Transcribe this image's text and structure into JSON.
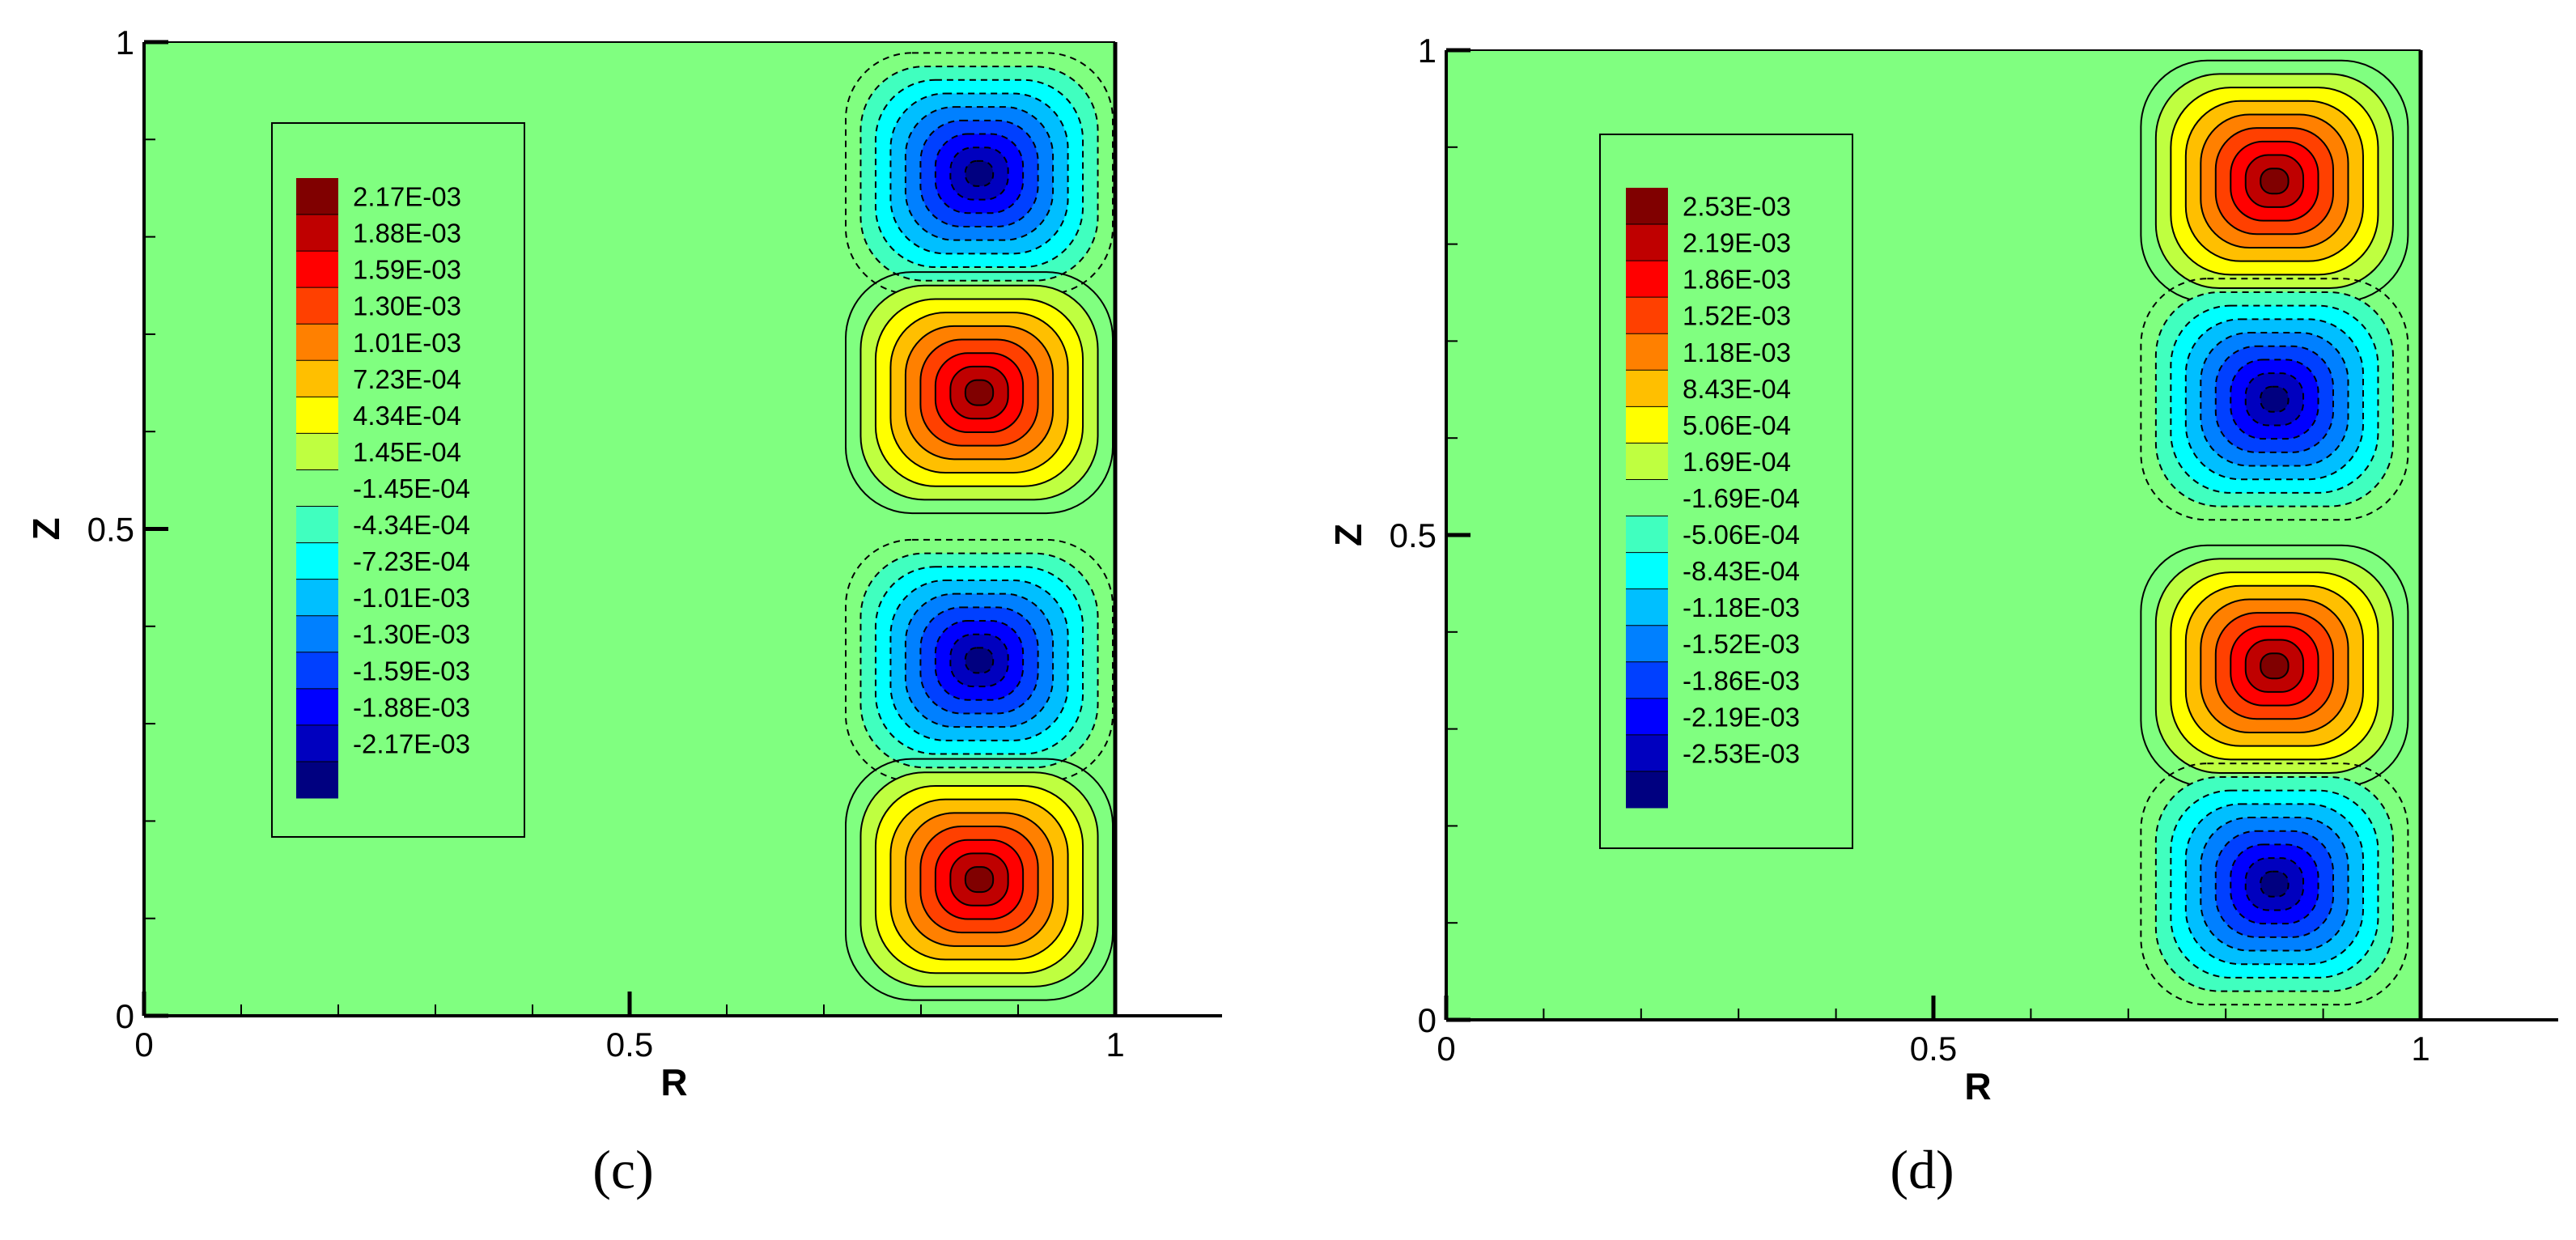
{
  "chart_data": [
    {
      "type": "heatmap",
      "subtype": "filled-contour",
      "caption": "(c)",
      "xlabel": "R",
      "ylabel": "Z",
      "xlim": [
        0,
        1
      ],
      "ylim": [
        0,
        1
      ],
      "x_ticks": [
        {
          "value": 0,
          "label": "0"
        },
        {
          "value": 0.5,
          "label": "0.5"
        },
        {
          "value": 1,
          "label": "1"
        }
      ],
      "y_ticks": [
        {
          "value": 0,
          "label": "0"
        },
        {
          "value": 0.5,
          "label": "0.5"
        },
        {
          "value": 1,
          "label": "1"
        }
      ],
      "legend_position": "left",
      "colorscale": "jet",
      "range": [
        -0.00217,
        0.00217
      ],
      "legend_levels": [
        "2.17E-03",
        "1.88E-03",
        "1.59E-03",
        "1.30E-03",
        "1.01E-03",
        "7.23E-04",
        "4.34E-04",
        "1.45E-04",
        "-1.45E-04",
        "-4.34E-04",
        "-7.23E-04",
        "-1.01E-03",
        "-1.30E-03",
        "-1.59E-03",
        "-1.88E-03",
        "-2.17E-03"
      ],
      "cells": [
        {
          "r": 0.86,
          "z": 0.865,
          "sign": -1
        },
        {
          "r": 0.86,
          "z": 0.64,
          "sign": 1
        },
        {
          "r": 0.86,
          "z": 0.365,
          "sign": -1
        },
        {
          "r": 0.86,
          "z": 0.14,
          "sign": 1
        }
      ]
    },
    {
      "type": "heatmap",
      "subtype": "filled-contour",
      "caption": "(d)",
      "xlabel": "R",
      "ylabel": "Z",
      "xlim": [
        0,
        1
      ],
      "ylim": [
        0,
        1
      ],
      "x_ticks": [
        {
          "value": 0,
          "label": "0"
        },
        {
          "value": 0.5,
          "label": "0.5"
        },
        {
          "value": 1,
          "label": "1"
        }
      ],
      "y_ticks": [
        {
          "value": 0,
          "label": "0"
        },
        {
          "value": 0.5,
          "label": "0.5"
        },
        {
          "value": 1,
          "label": "1"
        }
      ],
      "legend_position": "left",
      "colorscale": "jet",
      "range": [
        -0.00253,
        0.00253
      ],
      "legend_levels": [
        "2.53E-03",
        "2.19E-03",
        "1.86E-03",
        "1.52E-03",
        "1.18E-03",
        "8.43E-04",
        "5.06E-04",
        "1.69E-04",
        "-1.69E-04",
        "-5.06E-04",
        "-8.43E-04",
        "-1.18E-03",
        "-1.52E-03",
        "-1.86E-03",
        "-2.19E-03",
        "-2.53E-03"
      ],
      "cells": [
        {
          "r": 0.85,
          "z": 0.865,
          "sign": 1
        },
        {
          "r": 0.85,
          "z": 0.64,
          "sign": -1
        },
        {
          "r": 0.85,
          "z": 0.365,
          "sign": 1
        },
        {
          "r": 0.85,
          "z": 0.14,
          "sign": -1
        }
      ]
    }
  ]
}
